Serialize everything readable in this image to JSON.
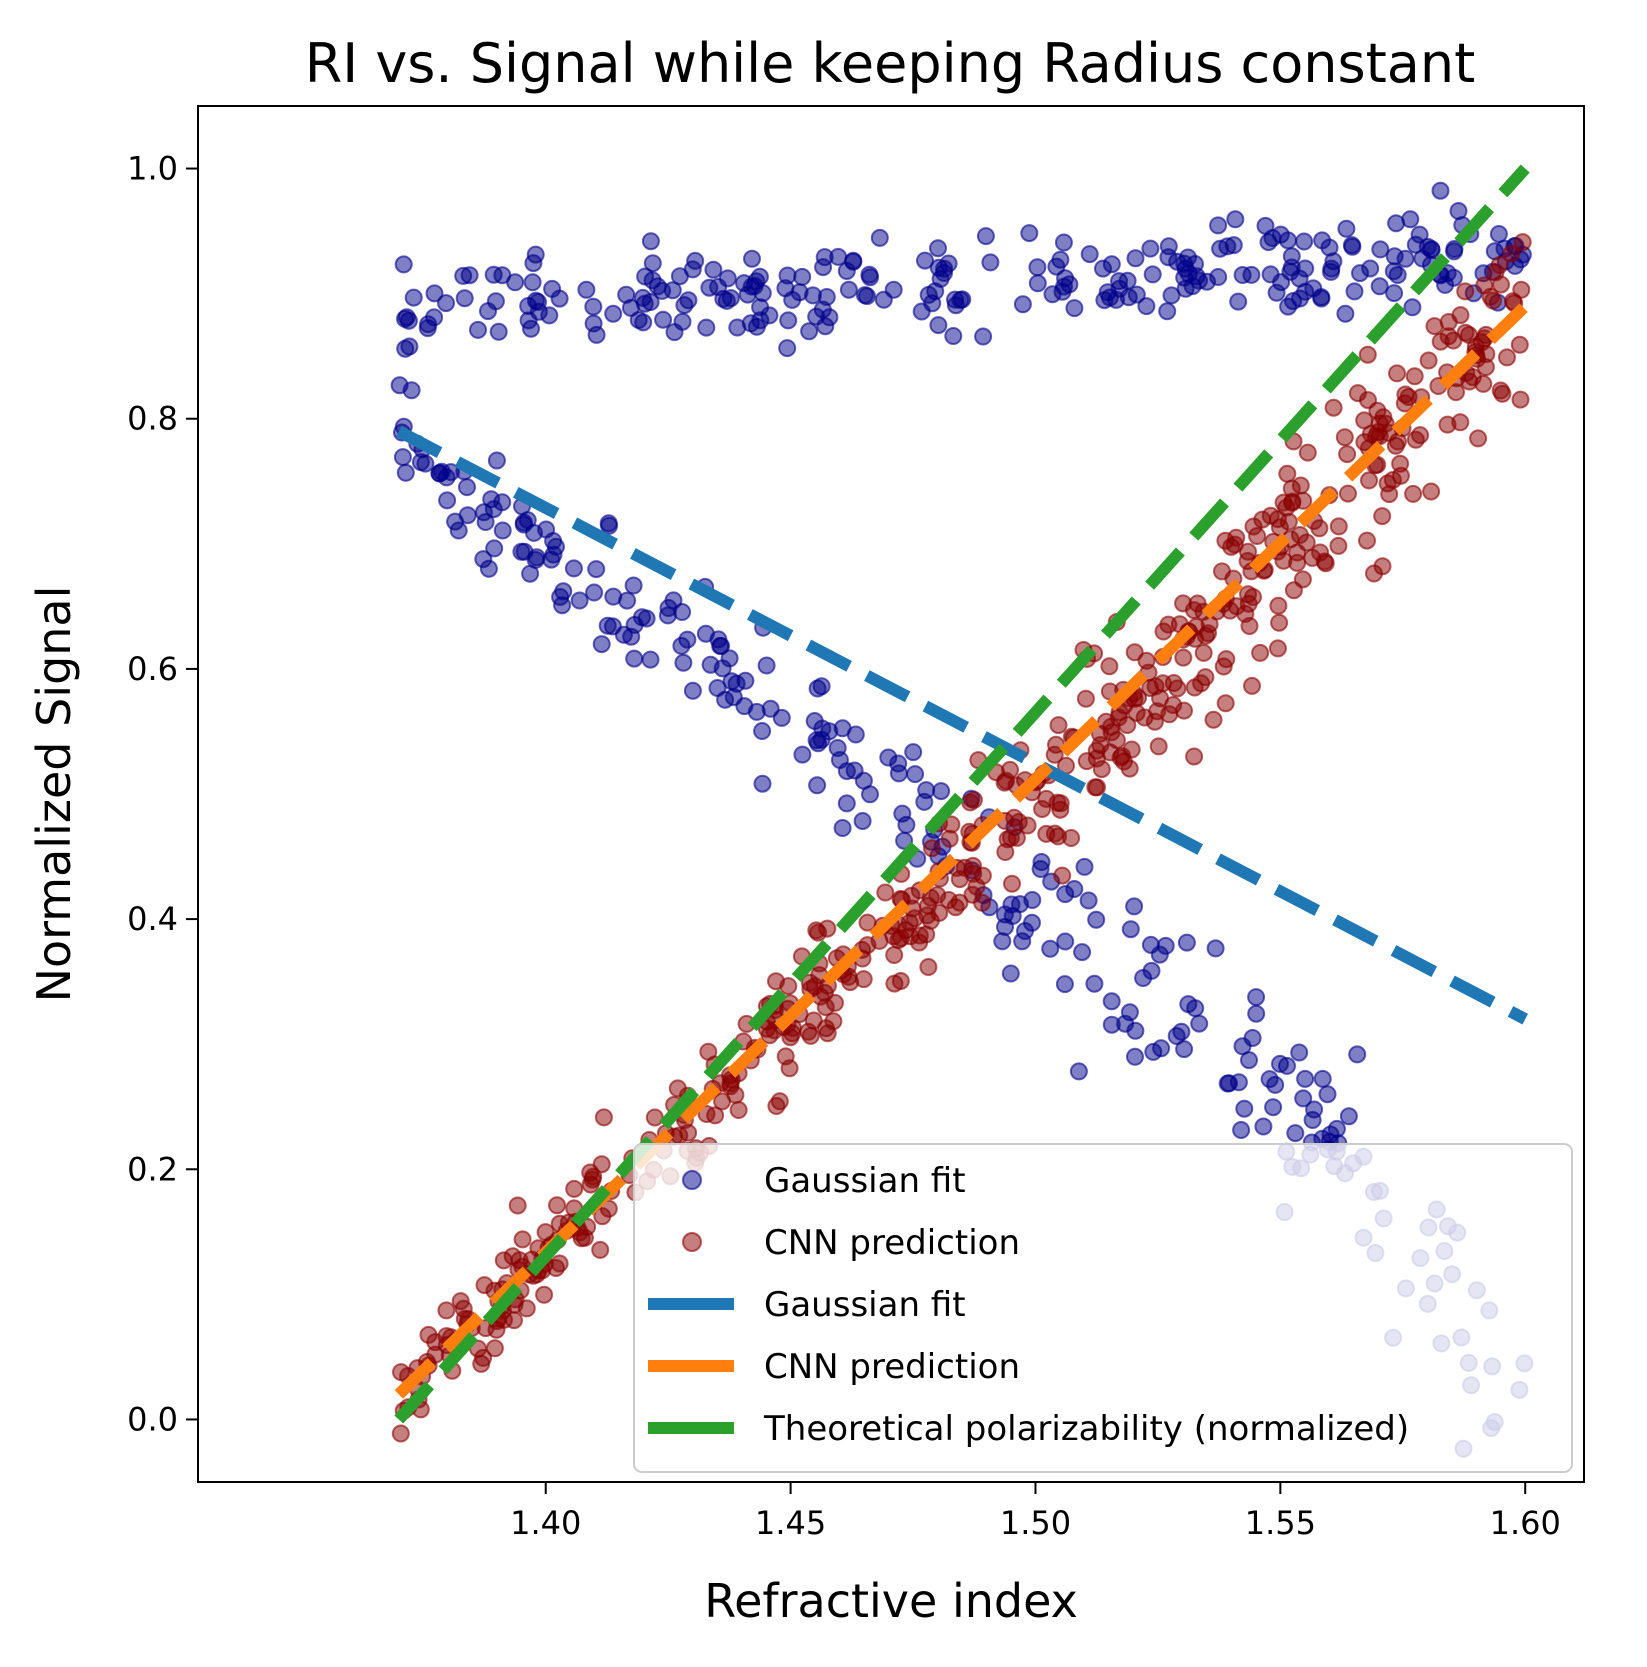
{
  "chart_data": {
    "type": "scatter",
    "title": "RI vs. Signal while keeping Radius constant",
    "xlabel": "Refractive index",
    "ylabel": "Normalized Signal",
    "xlim": [
      1.329,
      1.612
    ],
    "ylim": [
      -0.05,
      1.05
    ],
    "xticks": [
      1.4,
      1.45,
      1.5,
      1.55,
      1.6
    ],
    "xtick_labels": [
      "1.40",
      "1.45",
      "1.50",
      "1.55",
      "1.60"
    ],
    "yticks": [
      0.0,
      0.2,
      0.4,
      0.6,
      0.8,
      1.0
    ],
    "ytick_labels": [
      "0.0",
      "0.2",
      "0.4",
      "0.6",
      "0.8",
      "1.0"
    ],
    "grid": false,
    "legend_position": "lower-right",
    "x_range": [
      1.37,
      1.6
    ],
    "series": [
      {
        "name": "Gaussian fit",
        "kind": "scatter",
        "color": "#00008b",
        "branches": [
          {
            "description_points": [
              [
                1.37,
                0.885
              ],
              [
                1.4,
                0.89
              ],
              [
                1.45,
                0.9
              ],
              [
                1.5,
                0.915
              ],
              [
                1.55,
                0.922
              ],
              [
                1.6,
                0.935
              ]
            ],
            "spread": 0.018
          },
          {
            "description_points": [
              [
                1.37,
                0.77
              ],
              [
                1.4,
                0.69
              ],
              [
                1.45,
                0.56
              ],
              [
                1.5,
                0.4
              ],
              [
                1.55,
                0.26
              ],
              [
                1.6,
                0.02
              ]
            ],
            "spread": 0.03
          }
        ]
      },
      {
        "name": "CNN prediction",
        "kind": "scatter",
        "color": "#8b0000",
        "trend_points": [
          [
            1.37,
            0.02
          ],
          [
            1.4,
            0.13
          ],
          [
            1.45,
            0.31
          ],
          [
            1.5,
            0.5
          ],
          [
            1.55,
            0.69
          ],
          [
            1.6,
            0.9
          ]
        ],
        "spread": 0.03
      },
      {
        "name": "Gaussian fit",
        "kind": "line",
        "style": "dashed",
        "color": "#1f77b4",
        "x": [
          1.37,
          1.6
        ],
        "y": [
          0.79,
          0.32
        ]
      },
      {
        "name": "CNN prediction",
        "kind": "line",
        "style": "dashed",
        "color": "#ff7f0e",
        "x": [
          1.37,
          1.6
        ],
        "y": [
          0.02,
          0.89
        ]
      },
      {
        "name": "Theoretical polarizability (normalized)",
        "kind": "line",
        "style": "dashed",
        "color": "#2ca02c",
        "x": [
          1.37,
          1.6
        ],
        "y": [
          0.0,
          1.0
        ]
      }
    ],
    "legend": [
      {
        "label": "Gaussian fit",
        "marker": "circle",
        "color": "#00008b"
      },
      {
        "label": "CNN prediction",
        "marker": "circle",
        "color": "#8b0000"
      },
      {
        "label": "Gaussian fit",
        "marker": "line",
        "color": "#1f77b4"
      },
      {
        "label": "CNN prediction",
        "marker": "line",
        "color": "#ff7f0e"
      },
      {
        "label": "Theoretical polarizability (normalized)",
        "marker": "line",
        "color": "#2ca02c"
      }
    ]
  }
}
